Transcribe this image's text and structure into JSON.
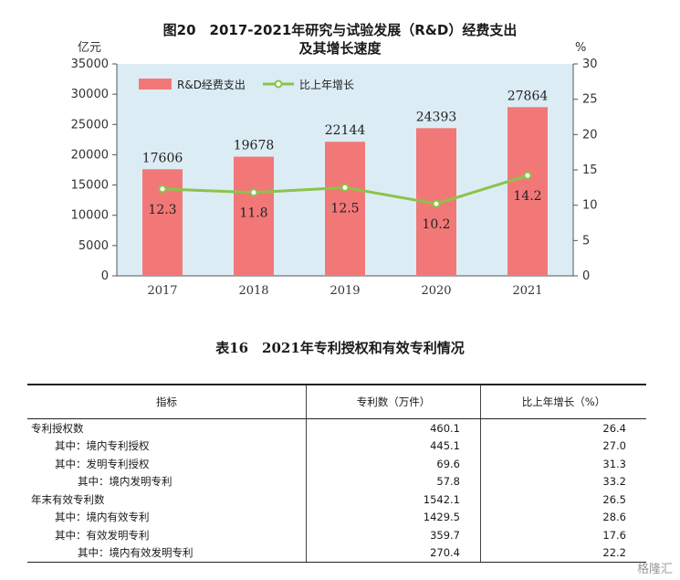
{
  "chart_title": {
    "line1": "图20　2017-2021年研究与试验发展（R&D）经费支出",
    "line2": "及其增长速度"
  },
  "chart_data": {
    "type": "bar",
    "categories": [
      "2017",
      "2018",
      "2019",
      "2020",
      "2021"
    ],
    "series": [
      {
        "name": "R&D经费支出",
        "kind": "bar",
        "axis": "left",
        "values": [
          17606,
          19678,
          22144,
          24393,
          27864
        ],
        "color": "#f27878"
      },
      {
        "name": "比上年增长",
        "kind": "line",
        "axis": "right",
        "values": [
          12.3,
          11.8,
          12.5,
          10.2,
          14.2
        ],
        "color": "#8bc34a"
      }
    ],
    "bar_labels": [
      "17606",
      "19678",
      "22144",
      "24393",
      "27864"
    ],
    "line_labels": [
      "12.3",
      "11.8",
      "12.5",
      "10.2",
      "14.2"
    ],
    "left_axis": {
      "unit": "亿元",
      "ylim": [
        0,
        35000
      ],
      "ticks": [
        "0",
        "5000",
        "10000",
        "15000",
        "20000",
        "25000",
        "30000",
        "35000"
      ]
    },
    "right_axis": {
      "unit": "%",
      "ylim": [
        0,
        30
      ],
      "ticks": [
        "0",
        "5",
        "10",
        "15",
        "20",
        "25",
        "30"
      ]
    },
    "plot_background": "#dcecf5",
    "legend_position": "top-left",
    "grid": false
  },
  "table": {
    "title": "表16　2021年专利授权和有效专利情况",
    "headers": [
      "指标",
      "专利数（万件）",
      "比上年增长（%）"
    ],
    "rows": [
      {
        "label": "专利授权数",
        "count": "460.1",
        "growth": "26.4",
        "indent": 0
      },
      {
        "label": "其中：境内专利授权",
        "count": "445.1",
        "growth": "27.0",
        "indent": 1
      },
      {
        "label": "其中：发明专利授权",
        "count": "69.6",
        "growth": "31.3",
        "indent": 1
      },
      {
        "label": "其中：境内发明专利",
        "count": "57.8",
        "growth": "33.2",
        "indent": 2
      },
      {
        "label": "年末有效专利数",
        "count": "1542.1",
        "growth": "26.5",
        "indent": 0
      },
      {
        "label": "其中：境内有效专利",
        "count": "1429.5",
        "growth": "28.6",
        "indent": 1
      },
      {
        "label": "其中：有效发明专利",
        "count": "359.7",
        "growth": "17.6",
        "indent": 1
      },
      {
        "label": "其中：境内有效发明专利",
        "count": "270.4",
        "growth": "22.2",
        "indent": 2
      }
    ]
  },
  "watermark": "格隆汇"
}
